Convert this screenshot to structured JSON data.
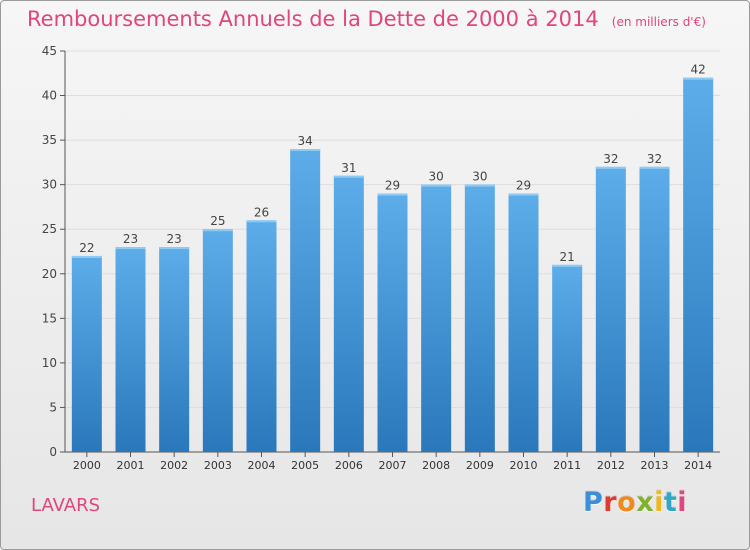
{
  "header": {
    "title": "Remboursements Annuels de la Dette de 2000 à 2014",
    "unit_note": "(en milliers d'€)"
  },
  "footer": {
    "commune": "LAVARS",
    "brand": "Proxiti",
    "brand_colors": [
      "#3a8fd8",
      "#e33a2f",
      "#f08a1c",
      "#7fb32c",
      "#f0b81c",
      "#2fa8c8",
      "#e0457b"
    ]
  },
  "colors": {
    "title": "#e0457b",
    "bar_top": "#5dadea",
    "bar_bottom": "#2a78bb",
    "axis": "#555555",
    "grid": "#dddddd"
  },
  "chart_data": {
    "type": "bar",
    "title": "Remboursements Annuels de la Dette de 2000 à 2014",
    "subtitle": "(en milliers d'€)",
    "categories": [
      "2000",
      "2001",
      "2002",
      "2003",
      "2004",
      "2005",
      "2006",
      "2007",
      "2008",
      "2009",
      "2010",
      "2011",
      "2012",
      "2013",
      "2014"
    ],
    "values": [
      22,
      23,
      23,
      25,
      26,
      34,
      31,
      29,
      30,
      30,
      29,
      21,
      32,
      32,
      42
    ],
    "ylim": [
      0,
      45
    ],
    "yticks": [
      0,
      5,
      10,
      15,
      20,
      25,
      30,
      35,
      40,
      45
    ],
    "xlabel": "",
    "ylabel": "",
    "grid": true,
    "legend": "none"
  }
}
